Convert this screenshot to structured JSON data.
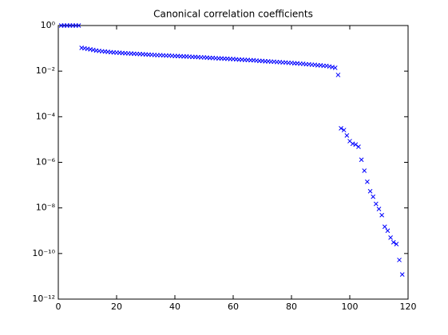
{
  "chart_data": {
    "type": "scatter",
    "title": "Canonical correlation coefficients",
    "x": [
      1,
      2,
      3,
      4,
      5,
      6,
      7,
      8,
      9,
      10,
      11,
      12,
      13,
      14,
      15,
      16,
      17,
      18,
      19,
      20,
      21,
      22,
      23,
      24,
      25,
      26,
      27,
      28,
      29,
      30,
      31,
      32,
      33,
      34,
      35,
      36,
      37,
      38,
      39,
      40,
      41,
      42,
      43,
      44,
      45,
      46,
      47,
      48,
      49,
      50,
      51,
      52,
      53,
      54,
      55,
      56,
      57,
      58,
      59,
      60,
      61,
      62,
      63,
      64,
      65,
      66,
      67,
      68,
      69,
      70,
      71,
      72,
      73,
      74,
      75,
      76,
      77,
      78,
      79,
      80,
      81,
      82,
      83,
      84,
      85,
      86,
      87,
      88,
      89,
      90,
      91,
      92,
      93,
      94,
      95,
      96,
      97,
      98,
      99,
      100,
      101,
      102,
      103,
      104,
      105,
      106,
      107,
      108,
      109,
      110,
      111,
      112,
      113,
      114,
      115,
      116,
      117,
      118
    ],
    "values": [
      1,
      1,
      1,
      1,
      1,
      1,
      1,
      0.105,
      0.1,
      0.095,
      0.09,
      0.085,
      0.08,
      0.077,
      0.074,
      0.072,
      0.07,
      0.068,
      0.066,
      0.065,
      0.064,
      0.062,
      0.061,
      0.06,
      0.059,
      0.058,
      0.057,
      0.056,
      0.055,
      0.054,
      0.053,
      0.052,
      0.051,
      0.05,
      0.05,
      0.049,
      0.048,
      0.048,
      0.047,
      0.046,
      0.046,
      0.045,
      0.044,
      0.044,
      0.043,
      0.042,
      0.042,
      0.041,
      0.04,
      0.04,
      0.039,
      0.038,
      0.038,
      0.037,
      0.036,
      0.036,
      0.035,
      0.035,
      0.034,
      0.034,
      0.033,
      0.032,
      0.032,
      0.031,
      0.031,
      0.03,
      0.03,
      0.029,
      0.028,
      0.028,
      0.027,
      0.027,
      0.026,
      0.026,
      0.025,
      0.025,
      0.024,
      0.024,
      0.023,
      0.023,
      0.022,
      0.022,
      0.021,
      0.021,
      0.02,
      0.02,
      0.019,
      0.019,
      0.018,
      0.018,
      0.017,
      0.017,
      0.016,
      0.015,
      0.014,
      0.0068,
      3.1e-05,
      2.6e-05,
      1.5e-05,
      8.5e-06,
      6.5e-06,
      6e-06,
      4.8e-06,
      1.3e-06,
      4.3e-07,
      1.4e-07,
      5.4e-08,
      3.1e-08,
      1.5e-08,
      9e-09,
      4.8e-09,
      1.5e-09,
      1e-09,
      5e-10,
      3.1e-10,
      2.6e-10,
      5.2e-11,
      1.2e-11
    ],
    "color": "#0000ff",
    "marker": "x",
    "xlim": [
      0,
      120
    ],
    "xticks": [
      0,
      20,
      40,
      60,
      80,
      100,
      120
    ],
    "ylim": [
      1e-12,
      1
    ],
    "ylog": true,
    "yticks": [
      {
        "value": 1e-12,
        "label": "10⁻¹²"
      },
      {
        "value": 1e-10,
        "label": "10⁻¹⁰"
      },
      {
        "value": 1e-08,
        "label": "10⁻⁸"
      },
      {
        "value": 1e-06,
        "label": "10⁻⁶"
      },
      {
        "value": 0.0001,
        "label": "10⁻⁴"
      },
      {
        "value": 0.01,
        "label": "10⁻²"
      },
      {
        "value": 1,
        "label": "10⁰"
      }
    ]
  }
}
